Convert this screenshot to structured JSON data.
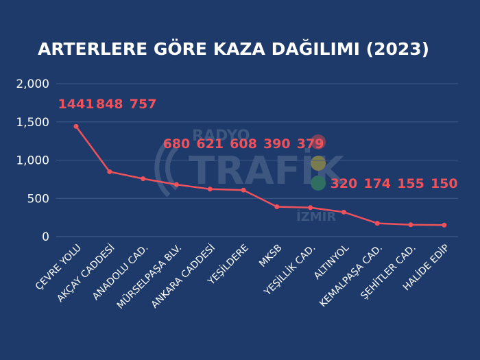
{
  "chart_data": {
    "type": "line",
    "title": "ARTERLERE GÖRE KAZA DAĞILIMI (2023)",
    "categories": [
      "ÇEVRE YOLU",
      "AKÇAY CADDESİ",
      "ANADOLU CAD.",
      "MÜRSELPAŞA BLV.",
      "ANKARA CADDESİ",
      "YEŞİLDERE",
      "MKSB",
      "YEŞİLLİK CAD.",
      "ALTINYOL",
      "KEMALPAŞA CAD.",
      "ŞEHİTLER CAD.",
      "HALİDE EDİP"
    ],
    "values": [
      1441,
      848,
      757,
      680,
      621,
      608,
      390,
      379,
      320,
      174,
      155,
      150
    ],
    "value_labels": [
      "1441",
      "848",
      "757",
      "680",
      "621",
      "608",
      "390",
      "379",
      "320",
      "174",
      "155",
      "150"
    ],
    "yticks": [
      0,
      500,
      1000,
      1500,
      2000
    ],
    "ytick_labels": [
      "0",
      "500",
      "1,000",
      "1,500",
      "2,000"
    ],
    "ylim": [
      0,
      2000
    ],
    "grid": true,
    "legend": "none",
    "colors": {
      "background": "#1d3a6b",
      "line": "#f0525b",
      "label": "#f0525b",
      "grid": "#3e5a86",
      "text": "#ffffff"
    }
  },
  "watermark": {
    "line1": "RADYO",
    "line2": "TRAFİK",
    "line3": "İZMİR"
  }
}
